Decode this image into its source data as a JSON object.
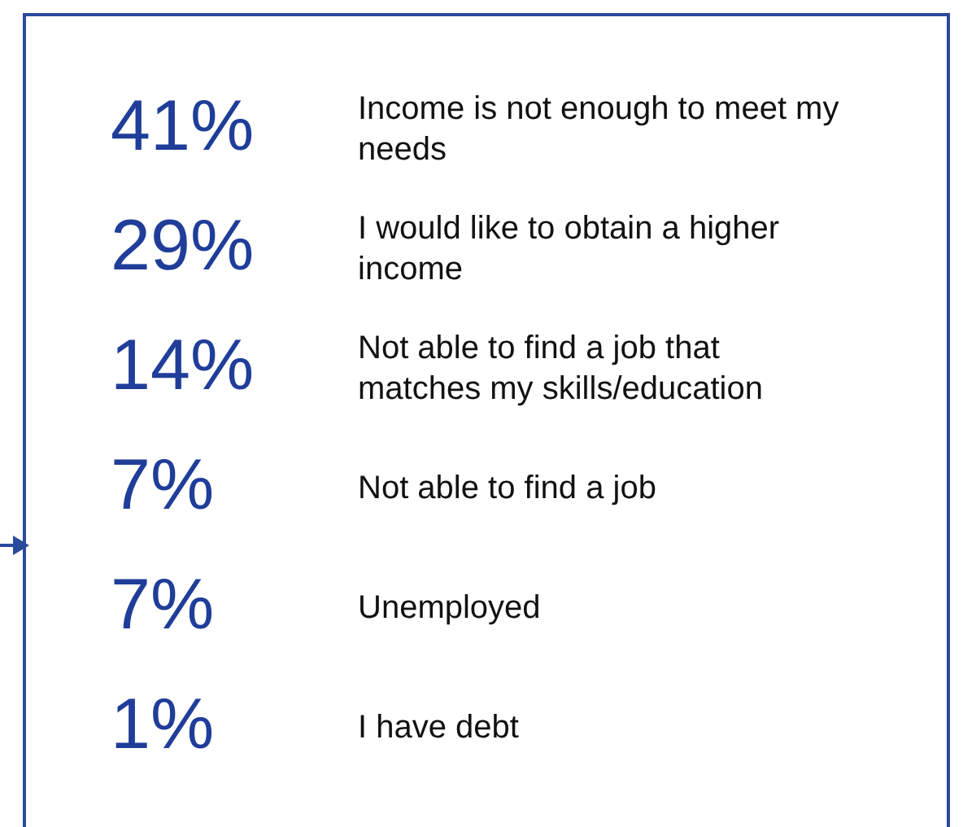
{
  "chart_data": {
    "type": "other",
    "categories": [
      "Income is not enough to meet my  needs",
      "I would like to obtain a higher income",
      "Not able to find a job that matches my skills/education",
      "Not able to find a job",
      "Unemployed",
      "I have debt"
    ],
    "values": [
      41,
      29,
      14,
      7,
      7,
      1
    ],
    "value_labels": [
      "41%",
      "29%",
      "14%",
      "7%",
      "7%",
      "1%"
    ],
    "color": "#1f3d99",
    "data_labels": true
  }
}
